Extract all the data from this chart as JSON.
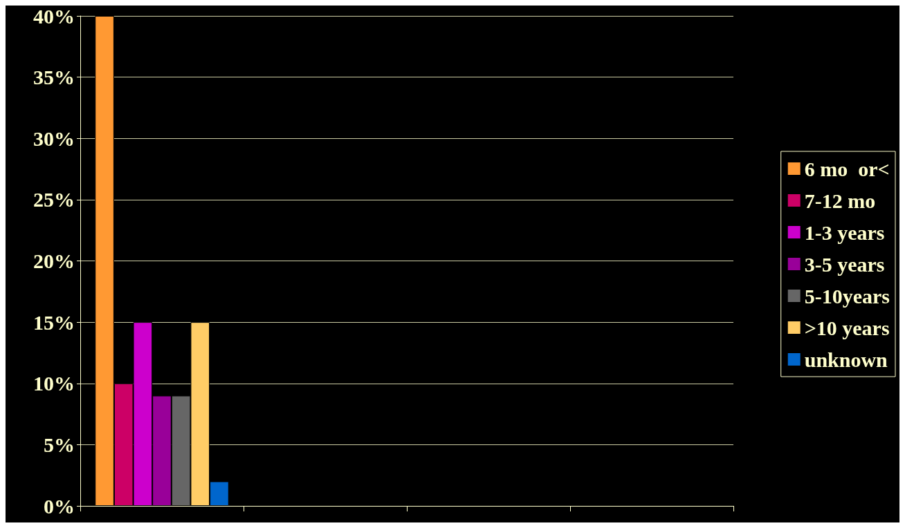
{
  "chart_data": {
    "type": "bar",
    "categories": [
      null,
      null,
      null,
      null
    ],
    "series": [
      {
        "name": "6 mo  or<",
        "color": "#ff9933",
        "values": [
          40,
          null,
          null,
          null
        ]
      },
      {
        "name": "7-12 mo",
        "color": "#cc0066",
        "values": [
          10,
          null,
          null,
          null
        ]
      },
      {
        "name": "1-3 years",
        "color": "#cc00cc",
        "values": [
          15,
          null,
          null,
          null
        ]
      },
      {
        "name": "3-5 years",
        "color": "#990099",
        "values": [
          9,
          null,
          null,
          null
        ]
      },
      {
        "name": "5-10years",
        "color": "#666666",
        "values": [
          9,
          null,
          null,
          null
        ]
      },
      {
        "name": ">10 years",
        "color": "#ffcc66",
        "values": [
          15,
          null,
          null,
          null
        ]
      },
      {
        "name": "unknown",
        "color": "#0066cc",
        "values": [
          2,
          null,
          null,
          null
        ]
      }
    ],
    "ylim": [
      0,
      40
    ],
    "yticks": [
      {
        "value": 0,
        "label": "0%"
      },
      {
        "value": 5,
        "label": "5%"
      },
      {
        "value": 10,
        "label": "10%"
      },
      {
        "value": 15,
        "label": "15%"
      },
      {
        "value": 20,
        "label": "20%"
      },
      {
        "value": 25,
        "label": "25%"
      },
      {
        "value": 30,
        "label": "30%"
      },
      {
        "value": 35,
        "label": "35%"
      },
      {
        "value": 40,
        "label": "40%"
      }
    ],
    "grid": "y",
    "legend": "right"
  }
}
